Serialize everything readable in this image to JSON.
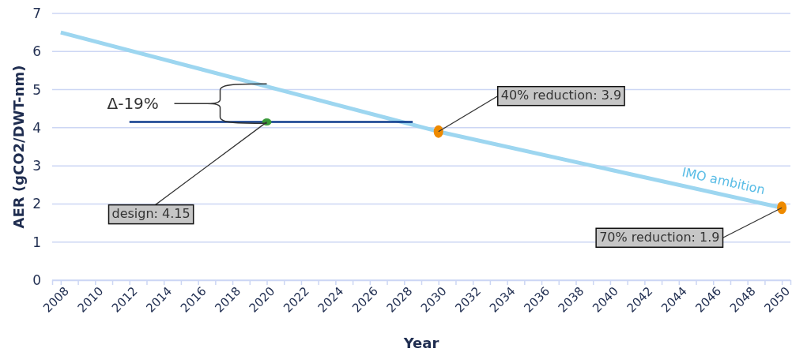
{
  "chart_data": {
    "type": "line",
    "xlabel": "Year",
    "ylabel": "AER (gCO2/DWT-nm)",
    "xlim": [
      2007.5,
      2050.5
    ],
    "xticks": [
      2008,
      {
        "value": 2009,
        "label": null
      },
      2010,
      {
        "value": 2011,
        "label": null
      },
      2012,
      {
        "value": 2013,
        "label": null
      },
      2014,
      {
        "value": 2015,
        "label": null
      },
      2016,
      {
        "value": 2017,
        "label": null
      },
      2018,
      {
        "value": 2019,
        "label": null
      },
      2020,
      {
        "value": 2021,
        "label": null
      },
      2022,
      {
        "value": 2023,
        "label": null
      },
      2024,
      {
        "value": 2025,
        "label": null
      },
      2026,
      {
        "value": 2027,
        "label": null
      },
      2028,
      {
        "value": 2029,
        "label": null
      },
      2030,
      {
        "value": 2031,
        "label": null
      },
      2032,
      {
        "value": 2033,
        "label": null
      },
      2034,
      {
        "value": 2035,
        "label": null
      },
      2036,
      {
        "value": 2037,
        "label": null
      },
      2038,
      {
        "value": 2039,
        "label": null
      },
      2040,
      {
        "value": 2041,
        "label": null
      },
      2042,
      {
        "value": 2043,
        "label": null
      },
      2044,
      {
        "value": 2045,
        "label": null
      },
      2046,
      {
        "value": 2047,
        "label": null
      },
      2048,
      {
        "value": 2049,
        "label": null
      },
      2050
    ],
    "ylim": [
      0,
      7
    ],
    "yticks": [
      0,
      1,
      2,
      3,
      4,
      5,
      6,
      7
    ],
    "grid": "y",
    "legend": false,
    "series": [
      {
        "name": "IMO ambition",
        "color": "#9dd6f0",
        "x": [
          2008,
          2019,
          2030,
          2040,
          2050
        ],
        "values": [
          6.5,
          5.2,
          3.9,
          2.9,
          1.9
        ]
      },
      {
        "color": "#0d3a8c",
        "x": [
          2012,
          2028.5
        ],
        "values": [
          4.15,
          4.15
        ]
      },
      {
        "type": "scatter",
        "marker": "circle",
        "color": "#3a9a3a",
        "x": [
          2020
        ],
        "values": [
          4.15
        ]
      },
      {
        "type": "scatter",
        "marker": "circle",
        "color": "#ee8a00",
        "x": [
          2030,
          2050
        ],
        "values": [
          3.9,
          1.9
        ]
      }
    ],
    "annotations": [
      {
        "text": "Δ-19%",
        "x": 2020,
        "y": 5.15
      },
      {
        "text": "design: 4.15",
        "x": 2020,
        "y": 4.15
      },
      {
        "text": "40% reduction: 3.9",
        "x": 2030,
        "y": 3.9
      },
      {
        "text": "70% reduction: 1.9",
        "x": 2050,
        "y": 1.9
      }
    ]
  }
}
